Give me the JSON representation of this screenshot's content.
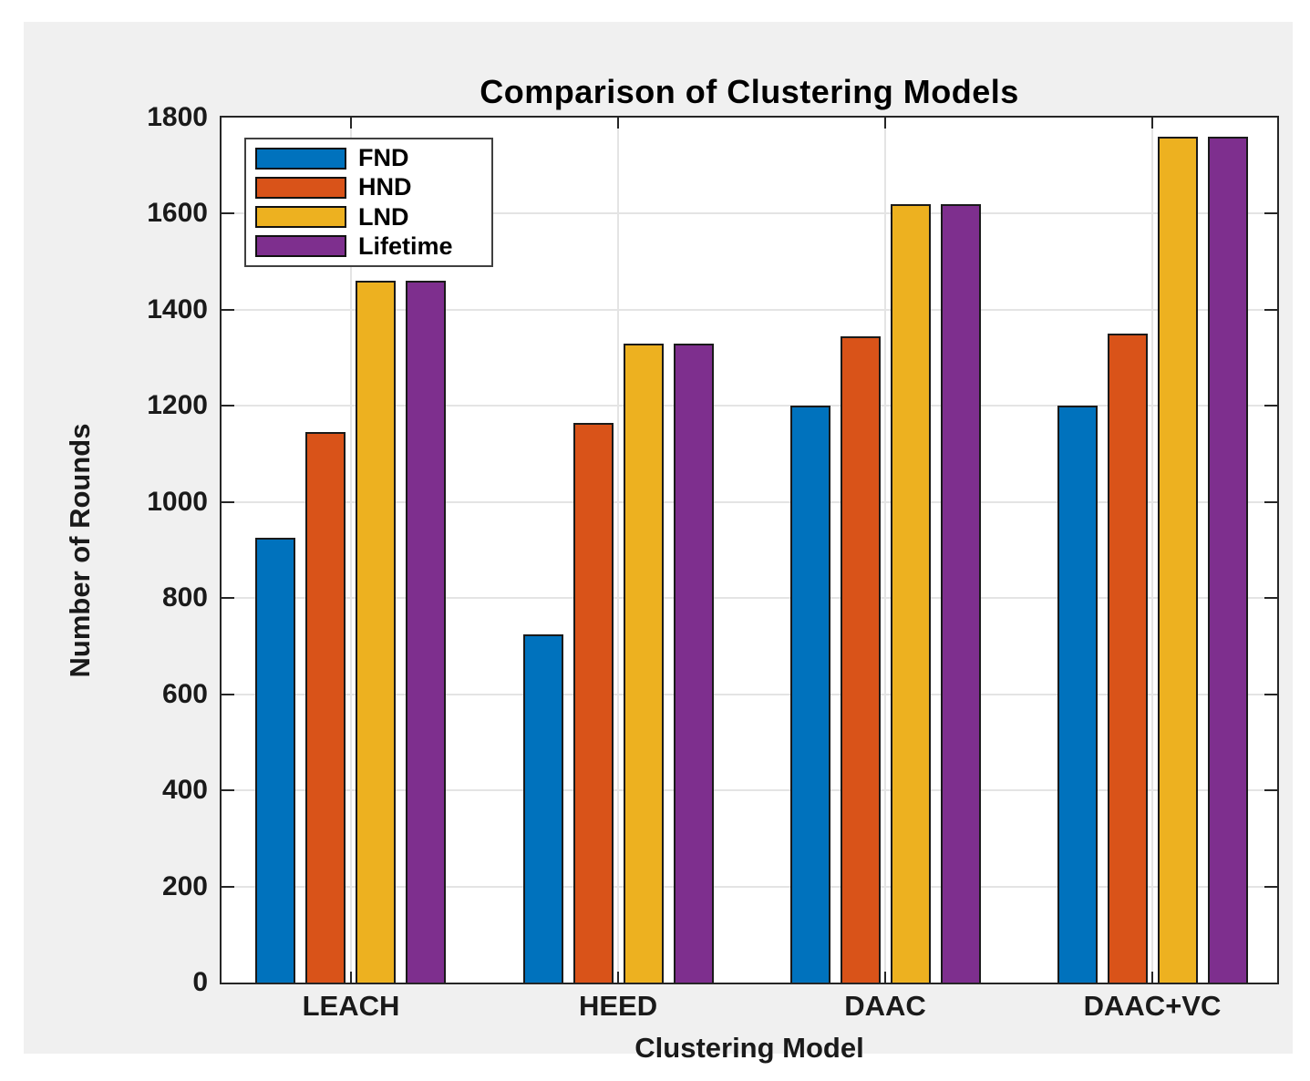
{
  "chart_data": {
    "type": "bar",
    "title": "Comparison of Clustering Models",
    "xlabel": "Clustering Model",
    "ylabel": "Number of Rounds",
    "ylim": [
      0,
      1800
    ],
    "yticks": [
      0,
      200,
      400,
      600,
      800,
      1000,
      1200,
      1400,
      1600,
      1800
    ],
    "grid": true,
    "legend_position": "top-left",
    "categories": [
      "LEACH",
      "HEED",
      "DAAC",
      "DAAC+VC"
    ],
    "series": [
      {
        "name": "FND",
        "color": "#0072BD",
        "values": [
          925,
          725,
          1200,
          1200
        ]
      },
      {
        "name": "HND",
        "color": "#D95319",
        "values": [
          1145,
          1165,
          1345,
          1350
        ]
      },
      {
        "name": "LND",
        "color": "#EDB120",
        "values": [
          1460,
          1330,
          1620,
          1760
        ]
      },
      {
        "name": "Lifetime",
        "color": "#7E2F8E",
        "values": [
          1460,
          1330,
          1620,
          1760
        ]
      }
    ]
  },
  "colors": {
    "figure_background": "#f0f0f0",
    "plot_background": "#ffffff",
    "grid": "#e4e4e4",
    "axis": "#262626",
    "bar_edge": "#1a1a1a",
    "text": "#1a1a1a"
  }
}
